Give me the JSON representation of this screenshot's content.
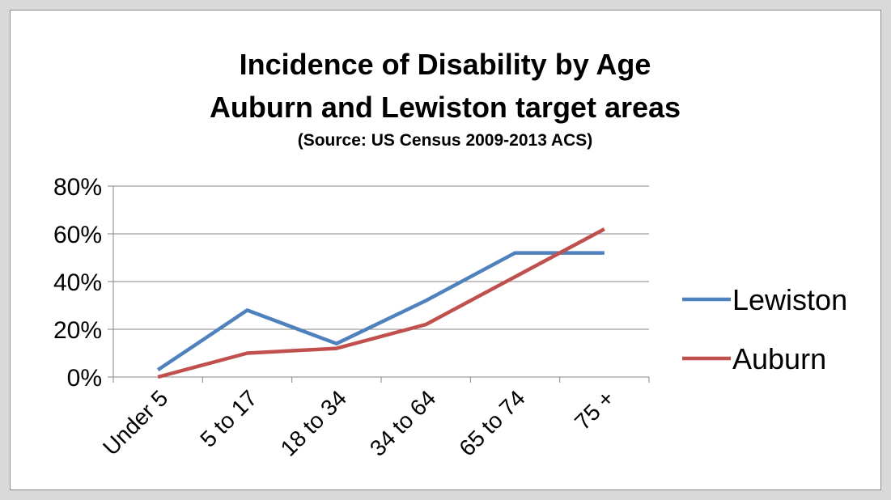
{
  "chart_data": {
    "type": "line",
    "title": "Incidence of Disability by Age",
    "subtitle": "Auburn and Lewiston target areas",
    "source": "(Source: US Census 2009-2013 ACS)",
    "xlabel": "",
    "ylabel": "",
    "categories": [
      "Under 5",
      "5 to 17",
      "18 to 34",
      "34 to 64",
      "65 to 74",
      "75 +"
    ],
    "y_tick_labels": [
      "0%",
      "20%",
      "40%",
      "60%",
      "80%"
    ],
    "y_tick_values": [
      0,
      20,
      40,
      60,
      80
    ],
    "ylim": [
      0,
      80
    ],
    "grid": true,
    "legend_position": "right",
    "series": [
      {
        "name": "Lewiston",
        "color": "#4f81bd",
        "values": [
          3,
          28,
          14,
          32,
          52,
          52
        ]
      },
      {
        "name": "Auburn",
        "color": "#c0504d",
        "values": [
          0,
          10,
          12,
          22,
          42,
          62
        ]
      }
    ]
  }
}
